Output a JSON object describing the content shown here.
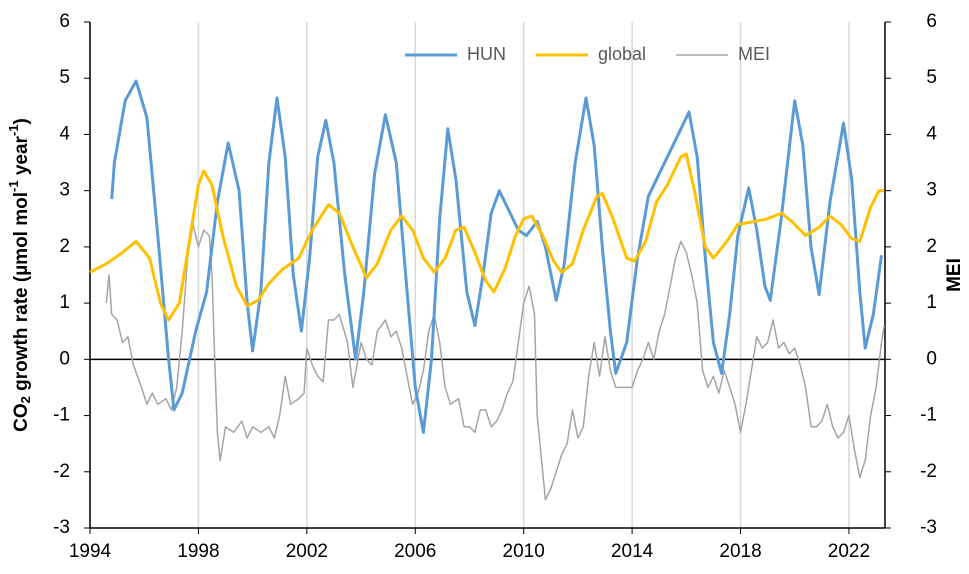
{
  "chart_data": {
    "type": "line",
    "y_label_parts": [
      "CO",
      "2",
      " growth rate (µmol mol",
      "-1",
      " year",
      "-1",
      ")"
    ],
    "y2_label": "MEI",
    "xlim": [
      1994,
      2023.33
    ],
    "xticks": [
      1994,
      1998,
      2002,
      2006,
      2010,
      2014,
      2018,
      2022
    ],
    "ylim": [
      -3,
      6
    ],
    "yticks": [
      -3,
      -2,
      -1,
      0,
      1,
      2,
      3,
      4,
      5,
      6
    ],
    "y2lim": [
      -3,
      6
    ],
    "y2ticks": [
      -3,
      -2,
      -1,
      0,
      1,
      2,
      3,
      4,
      5,
      6
    ],
    "grid": "x",
    "legend": "top",
    "series": [
      {
        "name": "HUN",
        "color": "#5b9bd5",
        "x": [
          1994.8,
          1994.9,
          1995.3,
          1995.7,
          1996.1,
          1996.5,
          1996.9,
          1997.1,
          1997.4,
          1997.9,
          1998.3,
          1998.7,
          1999.1,
          1999.5,
          1999.8,
          2000.0,
          2000.3,
          2000.6,
          2000.9,
          2001.2,
          2001.5,
          2001.8,
          2002.1,
          2002.4,
          2002.7,
          2003.0,
          2003.4,
          2003.8,
          2004.1,
          2004.5,
          2004.9,
          2005.3,
          2005.7,
          2006.0,
          2006.3,
          2006.6,
          2006.9,
          2007.2,
          2007.5,
          2007.9,
          2008.2,
          2008.5,
          2008.8,
          2009.1,
          2009.4,
          2009.8,
          2010.1,
          2010.5,
          2010.8,
          2011.2,
          2011.5,
          2011.9,
          2012.3,
          2012.6,
          2012.9,
          2013.2,
          2013.4,
          2013.8,
          2014.2,
          2014.6,
          2015.0,
          2015.5,
          2016.1,
          2016.4,
          2016.7,
          2017.0,
          2017.3,
          2017.6,
          2017.9,
          2018.3,
          2018.6,
          2018.9,
          2019.1,
          2019.5,
          2020.0,
          2020.3,
          2020.6,
          2020.9,
          2021.3,
          2021.8,
          2022.1,
          2022.4,
          2022.6,
          2022.9,
          2023.2
        ],
        "values": [
          2.85,
          3.5,
          4.6,
          4.95,
          4.3,
          2.2,
          0.0,
          -0.9,
          -0.6,
          0.5,
          1.2,
          2.8,
          3.85,
          3.0,
          1.0,
          0.15,
          1.2,
          3.5,
          4.65,
          3.6,
          1.5,
          0.5,
          1.8,
          3.6,
          4.25,
          3.5,
          1.5,
          0.0,
          1.2,
          3.3,
          4.35,
          3.5,
          1.2,
          -0.5,
          -1.3,
          0.0,
          2.5,
          4.1,
          3.2,
          1.2,
          0.6,
          1.5,
          2.6,
          3.0,
          2.7,
          2.3,
          2.2,
          2.45,
          2.0,
          1.05,
          1.7,
          3.5,
          4.65,
          3.8,
          2.0,
          0.5,
          -0.25,
          0.3,
          1.8,
          2.9,
          3.3,
          3.8,
          4.4,
          3.6,
          1.8,
          0.3,
          -0.25,
          0.8,
          2.2,
          3.05,
          2.3,
          1.3,
          1.05,
          2.5,
          4.6,
          3.8,
          2.0,
          1.15,
          2.8,
          4.2,
          3.2,
          1.2,
          0.2,
          0.8,
          1.85
        ]
      },
      {
        "name": "global",
        "color": "#ffc000",
        "x": [
          1994.0,
          1994.6,
          1995.2,
          1995.7,
          1996.2,
          1996.6,
          1996.9,
          1997.3,
          1997.7,
          1998.0,
          1998.2,
          1998.5,
          1998.9,
          1999.4,
          1999.8,
          2000.2,
          2000.6,
          2001.1,
          2001.7,
          2002.2,
          2002.8,
          2003.2,
          2003.7,
          2004.2,
          2004.6,
          2005.1,
          2005.5,
          2005.9,
          2006.3,
          2006.7,
          2007.1,
          2007.5,
          2007.8,
          2008.2,
          2008.6,
          2008.9,
          2009.3,
          2009.7,
          2010.0,
          2010.3,
          2010.7,
          2011.1,
          2011.4,
          2011.8,
          2012.2,
          2012.7,
          2012.9,
          2013.3,
          2013.8,
          2014.1,
          2014.5,
          2014.9,
          2015.3,
          2015.8,
          2016.0,
          2016.3,
          2016.7,
          2017.0,
          2017.5,
          2017.9,
          2018.5,
          2019.0,
          2019.5,
          2019.9,
          2020.4,
          2020.9,
          2021.3,
          2021.7,
          2022.1,
          2022.4,
          2022.8,
          2023.1,
          2023.3
        ],
        "values": [
          1.55,
          1.7,
          1.9,
          2.1,
          1.8,
          1.0,
          0.7,
          1.0,
          2.2,
          3.1,
          3.35,
          3.1,
          2.2,
          1.3,
          0.95,
          1.05,
          1.35,
          1.6,
          1.8,
          2.3,
          2.75,
          2.6,
          2.0,
          1.45,
          1.7,
          2.3,
          2.55,
          2.3,
          1.8,
          1.55,
          1.8,
          2.3,
          2.35,
          1.9,
          1.4,
          1.2,
          1.6,
          2.2,
          2.5,
          2.55,
          2.2,
          1.75,
          1.55,
          1.7,
          2.3,
          2.9,
          2.95,
          2.5,
          1.8,
          1.75,
          2.1,
          2.8,
          3.1,
          3.6,
          3.65,
          3.0,
          2.0,
          1.8,
          2.1,
          2.4,
          2.45,
          2.5,
          2.6,
          2.45,
          2.2,
          2.35,
          2.55,
          2.4,
          2.15,
          2.1,
          2.7,
          3.0,
          3.0
        ]
      },
      {
        "name": "MEI",
        "color": "#a5a5a5",
        "axis": "y2",
        "x": [
          1994.6,
          1994.7,
          1994.8,
          1995.0,
          1995.2,
          1995.4,
          1995.6,
          1995.9,
          1996.1,
          1996.3,
          1996.5,
          1996.8,
          1997.0,
          1997.2,
          1997.4,
          1997.6,
          1997.8,
          1998.0,
          1998.2,
          1998.4,
          1998.5,
          1998.6,
          1998.7,
          1998.8,
          1999.0,
          1999.3,
          1999.6,
          1999.8,
          2000.0,
          2000.3,
          2000.6,
          2000.8,
          2001.0,
          2001.2,
          2001.4,
          2001.7,
          2001.9,
          2002.0,
          2002.2,
          2002.4,
          2002.6,
          2002.8,
          2003.0,
          2003.2,
          2003.5,
          2003.7,
          2004.0,
          2004.2,
          2004.4,
          2004.6,
          2004.9,
          2005.1,
          2005.3,
          2005.5,
          2005.7,
          2005.9,
          2006.1,
          2006.3,
          2006.5,
          2006.7,
          2006.9,
          2007.1,
          2007.3,
          2007.6,
          2007.8,
          2008.0,
          2008.2,
          2008.4,
          2008.6,
          2008.8,
          2009.0,
          2009.2,
          2009.4,
          2009.6,
          2009.8,
          2010.0,
          2010.2,
          2010.4,
          2010.5,
          2010.7,
          2010.8,
          2011.0,
          2011.2,
          2011.4,
          2011.6,
          2011.8,
          2012.0,
          2012.2,
          2012.4,
          2012.6,
          2012.8,
          2013.0,
          2013.2,
          2013.4,
          2013.7,
          2014.0,
          2014.2,
          2014.4,
          2014.6,
          2014.8,
          2015.0,
          2015.2,
          2015.4,
          2015.6,
          2015.8,
          2016.0,
          2016.2,
          2016.4,
          2016.6,
          2016.8,
          2017.0,
          2017.2,
          2017.4,
          2017.6,
          2017.8,
          2018.0,
          2018.2,
          2018.4,
          2018.6,
          2018.8,
          2019.0,
          2019.2,
          2019.4,
          2019.6,
          2019.8,
          2020.0,
          2020.2,
          2020.4,
          2020.6,
          2020.8,
          2021.0,
          2021.2,
          2021.4,
          2021.6,
          2021.8,
          2022.0,
          2022.2,
          2022.4,
          2022.6,
          2022.8,
          2023.0,
          2023.2,
          2023.3
        ],
        "values": [
          1.0,
          1.5,
          0.8,
          0.7,
          0.3,
          0.4,
          -0.1,
          -0.5,
          -0.8,
          -0.6,
          -0.8,
          -0.7,
          -0.9,
          -0.5,
          0.5,
          1.8,
          2.4,
          2.0,
          2.3,
          2.2,
          1.5,
          0.0,
          -1.3,
          -1.8,
          -1.2,
          -1.3,
          -1.1,
          -1.4,
          -1.2,
          -1.3,
          -1.2,
          -1.4,
          -1.0,
          -0.3,
          -0.8,
          -0.7,
          -0.6,
          0.2,
          -0.1,
          -0.3,
          -0.4,
          0.7,
          0.7,
          0.8,
          0.3,
          -0.5,
          0.3,
          0.0,
          -0.1,
          0.5,
          0.7,
          0.4,
          0.5,
          0.2,
          -0.3,
          -0.8,
          -0.6,
          -0.2,
          0.5,
          0.8,
          0.3,
          -0.5,
          -0.8,
          -0.7,
          -1.2,
          -1.2,
          -1.3,
          -0.9,
          -0.9,
          -1.2,
          -1.1,
          -0.9,
          -0.6,
          -0.4,
          0.3,
          1.0,
          1.3,
          0.8,
          -1.0,
          -2.0,
          -2.5,
          -2.3,
          -2.0,
          -1.7,
          -1.5,
          -0.9,
          -1.4,
          -1.2,
          -0.3,
          0.3,
          -0.3,
          0.4,
          -0.2,
          -0.5,
          -0.5,
          -0.5,
          -0.2,
          0.0,
          0.3,
          0.0,
          0.5,
          0.8,
          1.3,
          1.8,
          2.1,
          1.9,
          1.5,
          1.0,
          -0.2,
          -0.5,
          -0.3,
          -0.6,
          -0.2,
          -0.5,
          -0.8,
          -1.3,
          -0.8,
          -0.2,
          0.4,
          0.2,
          0.3,
          0.7,
          0.2,
          0.3,
          0.1,
          0.2,
          -0.1,
          -0.5,
          -1.2,
          -1.2,
          -1.1,
          -0.8,
          -1.2,
          -1.4,
          -1.3,
          -1.0,
          -1.6,
          -2.1,
          -1.8,
          -1.0,
          -0.5,
          0.3,
          0.6
        ]
      }
    ]
  }
}
